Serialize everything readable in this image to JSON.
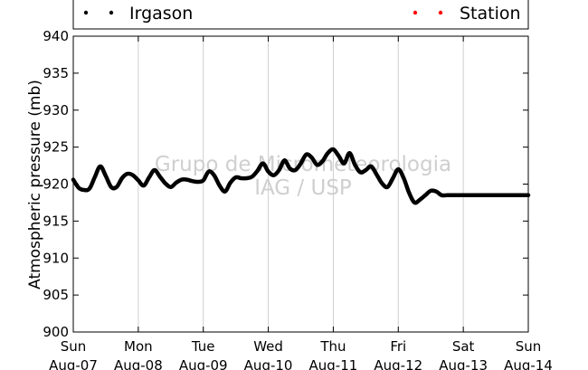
{
  "chart_data": {
    "type": "line",
    "xlabel": "",
    "ylabel": "Atmospheric pressure (mb)",
    "ylim": [
      900,
      940
    ],
    "yticks": [
      900,
      905,
      910,
      915,
      920,
      925,
      930,
      935,
      940
    ],
    "xlim": [
      "2011-08-07T00:00",
      "2011-08-14T00:00"
    ],
    "xticks": [
      {
        "day": "Sun",
        "date": "Aug-07"
      },
      {
        "day": "Mon",
        "date": "Aug-08"
      },
      {
        "day": "Tue",
        "date": "Aug-09"
      },
      {
        "day": "Wed",
        "date": "Aug-10"
      },
      {
        "day": "Thu",
        "date": "Aug-11"
      },
      {
        "day": "Fri",
        "date": "Aug-12"
      },
      {
        "day": "Sat",
        "date": "Aug-13"
      },
      {
        "day": "Sun",
        "date": "Aug-14"
      }
    ],
    "grid": "vertical",
    "legend_position": "top",
    "watermark": [
      "Grupo de Micrometeorologia",
      "IAG / USP"
    ],
    "series": [
      {
        "name": "Irgason",
        "color": "#000000",
        "x": [
          "2011-08-07T00:00",
          "2011-08-07T02:00",
          "2011-08-07T04:00",
          "2011-08-07T06:00",
          "2011-08-07T08:00",
          "2011-08-07T10:00",
          "2011-08-07T12:00",
          "2011-08-07T14:00",
          "2011-08-07T16:00",
          "2011-08-07T18:00",
          "2011-08-07T20:00",
          "2011-08-07T22:00",
          "2011-08-08T00:00",
          "2011-08-08T02:00",
          "2011-08-08T04:00",
          "2011-08-08T06:00",
          "2011-08-08T08:00",
          "2011-08-08T10:00",
          "2011-08-08T12:00",
          "2011-08-08T14:00",
          "2011-08-08T16:00",
          "2011-08-08T18:00",
          "2011-08-08T20:00",
          "2011-08-08T22:00",
          "2011-08-09T00:00",
          "2011-08-09T02:00",
          "2011-08-09T04:00",
          "2011-08-09T06:00",
          "2011-08-09T08:00",
          "2011-08-09T10:00",
          "2011-08-09T12:00",
          "2011-08-09T14:00",
          "2011-08-09T16:00",
          "2011-08-09T18:00",
          "2011-08-09T20:00",
          "2011-08-09T22:00",
          "2011-08-10T00:00",
          "2011-08-10T02:00",
          "2011-08-10T04:00",
          "2011-08-10T06:00",
          "2011-08-10T08:00",
          "2011-08-10T10:00",
          "2011-08-10T12:00",
          "2011-08-10T14:00",
          "2011-08-10T16:00",
          "2011-08-10T18:00",
          "2011-08-10T20:00",
          "2011-08-10T22:00",
          "2011-08-11T00:00",
          "2011-08-11T02:00",
          "2011-08-11T04:00",
          "2011-08-11T06:00",
          "2011-08-11T08:00",
          "2011-08-11T10:00",
          "2011-08-11T12:00",
          "2011-08-11T14:00",
          "2011-08-11T16:00",
          "2011-08-11T18:00",
          "2011-08-11T20:00",
          "2011-08-11T22:00",
          "2011-08-12T00:00",
          "2011-08-12T02:00",
          "2011-08-12T04:00",
          "2011-08-12T06:00",
          "2011-08-12T08:00",
          "2011-08-12T10:00",
          "2011-08-12T12:00",
          "2011-08-12T14:00",
          "2011-08-12T16:00",
          "2011-08-12T18:00",
          "2011-08-12T20:00",
          "2011-08-12T22:00",
          "2011-08-13T00:00",
          "2011-08-13T02:00",
          "2011-08-13T04:00",
          "2011-08-13T06:00",
          "2011-08-13T08:00",
          "2011-08-13T10:00",
          "2011-08-13T12:00",
          "2011-08-13T14:00",
          "2011-08-13T16:00",
          "2011-08-13T18:00",
          "2011-08-13T20:00",
          "2011-08-13T22:00",
          "2011-08-14T00:00"
        ],
        "values": [
          920.6,
          919.5,
          919.2,
          919.4,
          921.0,
          922.4,
          921.1,
          919.6,
          919.6,
          920.8,
          921.4,
          921.2,
          920.5,
          919.8,
          920.9,
          921.9,
          921.0,
          920.1,
          919.6,
          920.2,
          920.6,
          920.6,
          920.4,
          920.3,
          920.5,
          921.7,
          921.2,
          919.8,
          919.0,
          920.2,
          920.9,
          920.8,
          920.8,
          921.0,
          921.8,
          922.8,
          921.7,
          921.2,
          921.9,
          923.2,
          922.1,
          921.9,
          922.8,
          924.0,
          923.6,
          922.6,
          923.1,
          924.2,
          924.7,
          923.8,
          922.8,
          924.2,
          922.6,
          921.6,
          921.9,
          922.4,
          921.3,
          920.1,
          919.6,
          920.8,
          922.0,
          920.8,
          918.8,
          917.5,
          917.9,
          918.5,
          919.1,
          919.0,
          918.5,
          918.5,
          918.5,
          918.5,
          918.5,
          918.5,
          918.5,
          918.5,
          918.5,
          918.5,
          918.5,
          918.5,
          918.5,
          918.5,
          918.5,
          918.5,
          918.5
        ]
      },
      {
        "name": "Station",
        "color": "#ff0000",
        "x": [],
        "values": []
      }
    ]
  }
}
